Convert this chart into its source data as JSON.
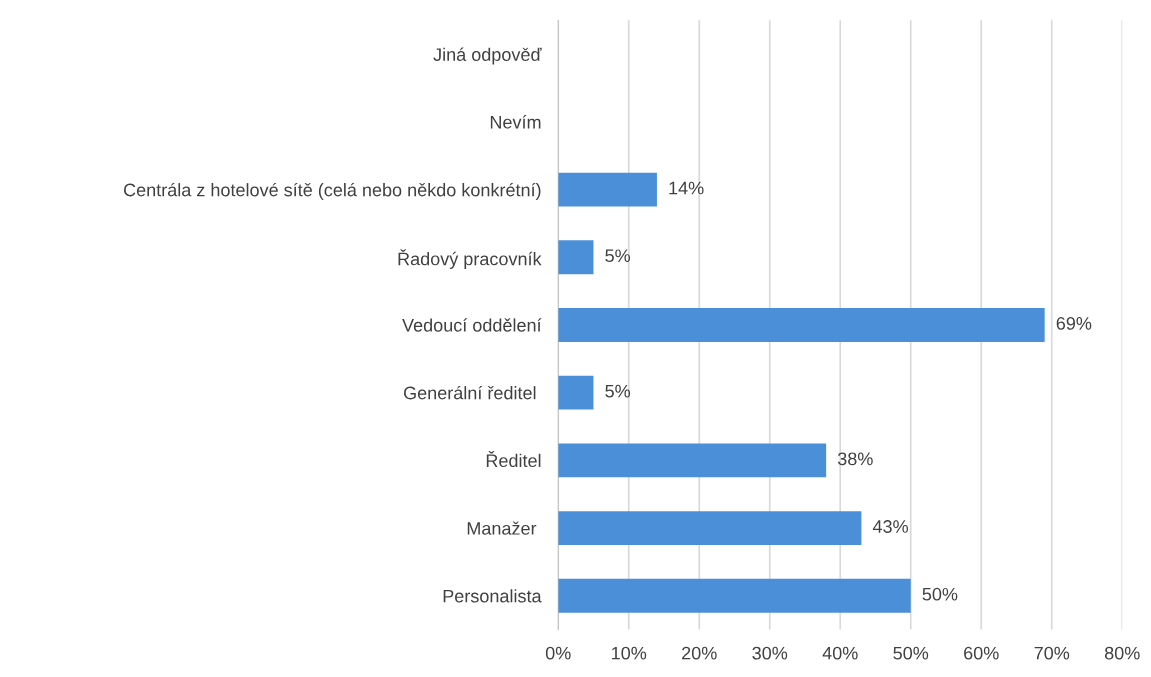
{
  "chart_data": {
    "type": "bar",
    "orientation": "horizontal",
    "categories": [
      "Jiná odpověď",
      "Nevím",
      "Centrála z hotelové sítě (celá nebo někdo konkrétní)",
      "Řadový pracovník",
      "Vedoucí oddělení",
      "Generální ředitel ",
      "Ředitel",
      "Manažer ",
      "Personalista"
    ],
    "values": [
      0,
      0,
      14,
      5,
      69,
      5,
      38,
      43,
      50
    ],
    "value_labels": [
      null,
      null,
      "14%",
      "5%",
      "69%",
      "5%",
      "38%",
      "43%",
      "50%"
    ],
    "color": "#4a8fd8",
    "xlim": [
      0,
      80
    ],
    "xticks": [
      {
        "value": 0,
        "label": "0%"
      },
      {
        "value": 10,
        "label": "10%"
      },
      {
        "value": 20,
        "label": "20%"
      },
      {
        "value": 30,
        "label": "30%"
      },
      {
        "value": 40,
        "label": "40%"
      },
      {
        "value": 50,
        "label": "50%"
      },
      {
        "value": 60,
        "label": "60%"
      },
      {
        "value": 70,
        "label": "70%"
      },
      {
        "value": 80,
        "label": "80%"
      }
    ],
    "grid": "x",
    "legend": false
  }
}
